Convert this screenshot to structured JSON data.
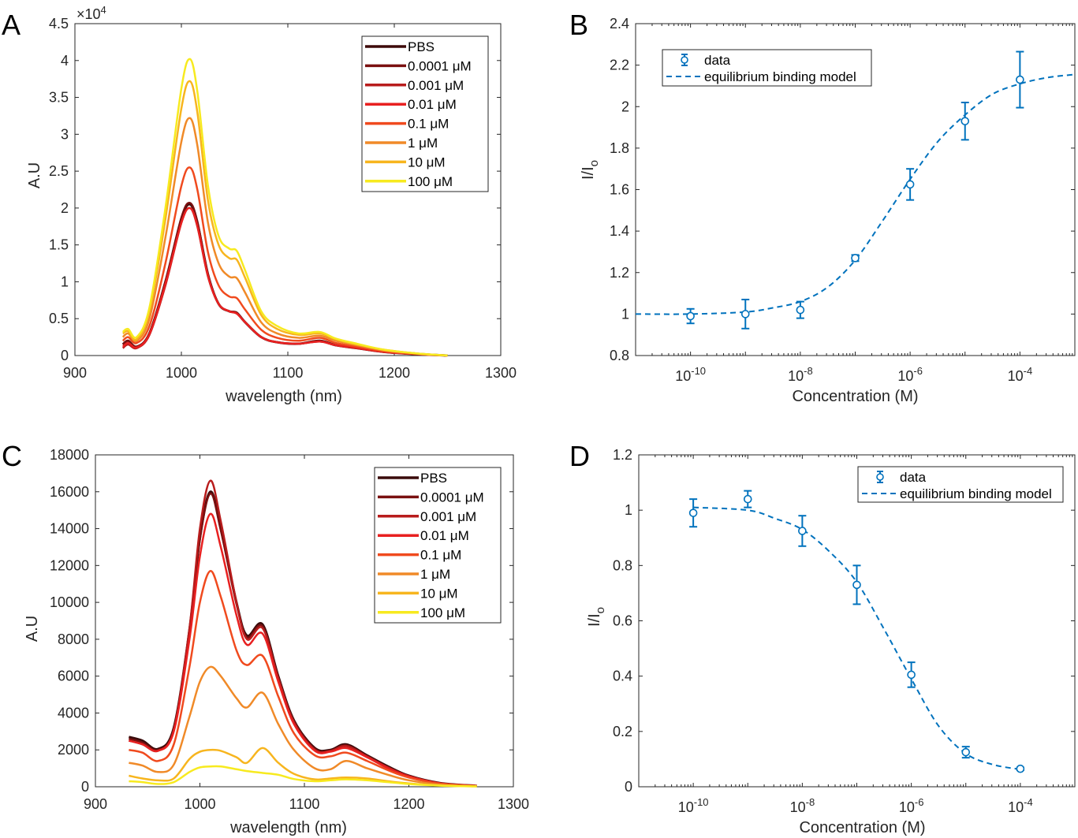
{
  "chart_data": [
    {
      "panel": "A",
      "type": "line",
      "xlabel": "wavelength (nm)",
      "ylabel": "A.U",
      "y_exponent": "×10",
      "y_exponent_power": "4",
      "xlim": [
        900,
        1300
      ],
      "ylim": [
        0,
        4.5
      ],
      "xticks": [
        900,
        1000,
        1100,
        1200,
        1300
      ],
      "yticks": [
        0,
        0.5,
        1,
        1.5,
        2,
        2.5,
        3,
        3.5,
        4,
        4.5
      ],
      "grid": false,
      "legend_position": "top-right",
      "x": [
        945,
        950,
        958,
        970,
        985,
        1000,
        1008,
        1015,
        1025,
        1035,
        1045,
        1052,
        1060,
        1075,
        1090,
        1110,
        1130,
        1145,
        1165,
        1190,
        1220,
        1250
      ],
      "series": [
        {
          "name": "PBS",
          "color": "#3d0a0a",
          "values": [
            0.15,
            0.2,
            0.12,
            0.3,
            1.0,
            1.85,
            2.05,
            1.8,
            1.1,
            0.7,
            0.6,
            0.58,
            0.45,
            0.25,
            0.18,
            0.16,
            0.2,
            0.14,
            0.1,
            0.05,
            0.02,
            0
          ]
        },
        {
          "name": "0.0001 μM",
          "color": "#7a1010",
          "values": [
            0.15,
            0.2,
            0.12,
            0.3,
            1.0,
            1.87,
            2.07,
            1.82,
            1.1,
            0.7,
            0.6,
            0.58,
            0.45,
            0.25,
            0.18,
            0.16,
            0.2,
            0.14,
            0.1,
            0.05,
            0.02,
            0
          ]
        },
        {
          "name": "0.001 μM",
          "color": "#b81c1c",
          "values": [
            0.1,
            0.15,
            0.1,
            0.28,
            0.95,
            1.8,
            2.0,
            1.75,
            1.07,
            0.7,
            0.6,
            0.57,
            0.45,
            0.25,
            0.18,
            0.16,
            0.19,
            0.14,
            0.1,
            0.05,
            0.02,
            0
          ]
        },
        {
          "name": "0.01 μM",
          "color": "#e82020",
          "values": [
            0.12,
            0.17,
            0.11,
            0.29,
            0.97,
            1.8,
            2.0,
            1.76,
            1.08,
            0.7,
            0.6,
            0.57,
            0.45,
            0.25,
            0.18,
            0.16,
            0.19,
            0.14,
            0.1,
            0.05,
            0.02,
            0
          ]
        },
        {
          "name": "0.1 μM",
          "color": "#f04a1e",
          "values": [
            0.2,
            0.25,
            0.17,
            0.4,
            1.25,
            2.3,
            2.55,
            2.25,
            1.4,
            0.95,
            0.8,
            0.78,
            0.62,
            0.35,
            0.24,
            0.2,
            0.24,
            0.17,
            0.12,
            0.06,
            0.02,
            0
          ]
        },
        {
          "name": "1 μM",
          "color": "#f08a28",
          "values": [
            0.25,
            0.3,
            0.2,
            0.5,
            1.6,
            2.9,
            3.22,
            2.85,
            1.8,
            1.25,
            1.07,
            1.05,
            0.85,
            0.45,
            0.3,
            0.24,
            0.27,
            0.2,
            0.14,
            0.07,
            0.03,
            0
          ]
        },
        {
          "name": "10 μM",
          "color": "#f7b51e",
          "values": [
            0.3,
            0.33,
            0.22,
            0.6,
            1.85,
            3.35,
            3.72,
            3.3,
            2.1,
            1.5,
            1.32,
            1.3,
            1.05,
            0.55,
            0.36,
            0.28,
            0.3,
            0.22,
            0.15,
            0.08,
            0.03,
            0
          ]
        },
        {
          "name": "100 μM",
          "color": "#f7ea1f",
          "values": [
            0.32,
            0.36,
            0.25,
            0.65,
            2.0,
            3.62,
            4.02,
            3.58,
            2.3,
            1.62,
            1.45,
            1.42,
            1.15,
            0.6,
            0.4,
            0.3,
            0.32,
            0.23,
            0.16,
            0.08,
            0.03,
            0
          ]
        }
      ]
    },
    {
      "panel": "B",
      "type": "scatter",
      "xscale": "log",
      "xlabel": "Concentration (M)",
      "ylabel_main": "I/I",
      "ylabel_sub": "o",
      "xlim": [
        1e-11,
        0.001
      ],
      "ylim": [
        0.8,
        2.4
      ],
      "xtick_labels": [
        {
          "base": "10",
          "exp": "-10"
        },
        {
          "base": "10",
          "exp": "-8"
        },
        {
          "base": "10",
          "exp": "-6"
        },
        {
          "base": "10",
          "exp": "-4"
        }
      ],
      "xticks_log10": [
        -10,
        -8,
        -6,
        -4
      ],
      "yticks": [
        0.8,
        1,
        1.2,
        1.4,
        1.6,
        1.8,
        2,
        2.2,
        2.4
      ],
      "grid": false,
      "legend_position": "top-left",
      "color": "#0072bd",
      "data": {
        "name": "data",
        "x": [
          1e-10,
          1e-09,
          1e-08,
          1e-07,
          1e-06,
          1e-05,
          0.0001
        ],
        "y": [
          0.99,
          1.0,
          1.02,
          1.27,
          1.625,
          1.93,
          2.13
        ],
        "err": [
          0.035,
          0.07,
          0.04,
          0.015,
          0.075,
          0.09,
          0.135
        ]
      },
      "model": {
        "name": "equilibrium binding model",
        "x": [
          1e-11,
          1e-10,
          1e-09,
          3.16e-09,
          1e-08,
          3.16e-08,
          1e-07,
          3.16e-07,
          1e-06,
          3.16e-06,
          1e-05,
          3.16e-05,
          0.0001,
          0.000316,
          0.001
        ],
        "y": [
          1.0,
          1.0,
          1.01,
          1.03,
          1.06,
          1.13,
          1.26,
          1.45,
          1.65,
          1.83,
          1.96,
          2.06,
          2.11,
          2.14,
          2.155
        ]
      }
    },
    {
      "panel": "C",
      "type": "line",
      "xlabel": "wavelength (nm)",
      "ylabel": "A.U",
      "xlim": [
        900,
        1300
      ],
      "ylim": [
        0,
        18000
      ],
      "xticks": [
        900,
        1000,
        1100,
        1200,
        1300
      ],
      "yticks": [
        0,
        2000,
        4000,
        6000,
        8000,
        10000,
        12000,
        14000,
        16000,
        18000
      ],
      "grid": false,
      "legend_position": "top-right",
      "x": [
        932,
        945,
        960,
        975,
        990,
        1000,
        1010,
        1020,
        1035,
        1045,
        1060,
        1075,
        1090,
        1110,
        1125,
        1140,
        1160,
        1180,
        1200,
        1230,
        1265
      ],
      "series": [
        {
          "name": "PBS",
          "color": "#3a0b0b",
          "values": [
            2700,
            2500,
            2050,
            3200,
            8500,
            13500,
            16000,
            14000,
            10000,
            8200,
            8800,
            6000,
            3600,
            2100,
            2000,
            2300,
            1700,
            1100,
            600,
            200,
            50
          ]
        },
        {
          "name": "0.0001 μM",
          "color": "#7a1010",
          "values": [
            2600,
            2400,
            2000,
            3100,
            8400,
            13400,
            15900,
            13900,
            9900,
            8100,
            8700,
            5900,
            3550,
            2050,
            1950,
            2250,
            1650,
            1050,
            580,
            190,
            50
          ]
        },
        {
          "name": "0.001 μM",
          "color": "#b81c1c",
          "values": [
            2500,
            2300,
            1950,
            3100,
            8600,
            14000,
            16600,
            14400,
            10000,
            8000,
            8600,
            5900,
            3500,
            2000,
            1950,
            2200,
            1650,
            1050,
            580,
            190,
            50
          ]
        },
        {
          "name": "0.01 μM",
          "color": "#e82020",
          "values": [
            2500,
            2300,
            1950,
            3000,
            8000,
            12500,
            14800,
            13000,
            9300,
            7700,
            8300,
            5700,
            3400,
            1950,
            1900,
            2100,
            1600,
            1000,
            560,
            180,
            50
          ]
        },
        {
          "name": "0.1 μM",
          "color": "#f04a1e",
          "values": [
            2000,
            1850,
            1400,
            2300,
            6500,
            10000,
            11700,
            10300,
            7400,
            6600,
            7100,
            4900,
            2900,
            1700,
            1650,
            1850,
            1400,
            900,
            500,
            170,
            40
          ]
        },
        {
          "name": "1 μM",
          "color": "#f08a28",
          "values": [
            1300,
            1150,
            800,
            1200,
            3800,
            5700,
            6500,
            6000,
            4800,
            4300,
            5100,
            3400,
            2000,
            1000,
            950,
            1400,
            1000,
            650,
            350,
            120,
            30
          ]
        },
        {
          "name": "10 μM",
          "color": "#f7b51e",
          "values": [
            600,
            450,
            350,
            450,
            1500,
            1900,
            2000,
            1950,
            1600,
            1300,
            2100,
            1300,
            700,
            400,
            450,
            500,
            450,
            300,
            180,
            70,
            20
          ]
        },
        {
          "name": "100 μM",
          "color": "#f7ea1f",
          "values": [
            300,
            250,
            150,
            250,
            800,
            1050,
            1100,
            1100,
            950,
            850,
            750,
            650,
            420,
            300,
            350,
            400,
            350,
            250,
            150,
            60,
            20
          ]
        }
      ]
    },
    {
      "panel": "D",
      "type": "scatter",
      "xscale": "log",
      "xlabel": "Concentration (M)",
      "ylabel_main": "I/I",
      "ylabel_sub": "o",
      "xlim": [
        1e-11,
        0.001
      ],
      "ylim": [
        0,
        1.2
      ],
      "xtick_labels": [
        {
          "base": "10",
          "exp": "-10"
        },
        {
          "base": "10",
          "exp": "-8"
        },
        {
          "base": "10",
          "exp": "-6"
        },
        {
          "base": "10",
          "exp": "-4"
        }
      ],
      "xticks_log10": [
        -10,
        -8,
        -6,
        -4
      ],
      "yticks": [
        0,
        0.2,
        0.4,
        0.6,
        0.8,
        1,
        1.2
      ],
      "grid": false,
      "legend_position": "top-right",
      "color": "#0072bd",
      "data": {
        "name": "data",
        "x": [
          1e-10,
          1e-09,
          1e-08,
          1e-07,
          1e-06,
          1e-05,
          0.0001
        ],
        "y": [
          0.99,
          1.04,
          0.925,
          0.73,
          0.405,
          0.125,
          0.065
        ],
        "err": [
          0.05,
          0.03,
          0.055,
          0.07,
          0.045,
          0.02,
          0.005
        ]
      },
      "model": {
        "name": "equilibrium binding model",
        "x": [
          1e-10,
          1e-09,
          3.16e-09,
          1e-08,
          3.16e-08,
          1e-07,
          3.16e-07,
          1e-06,
          3.16e-06,
          1e-05,
          3.16e-05,
          0.0001
        ],
        "y": [
          1.01,
          1.0,
          0.97,
          0.93,
          0.85,
          0.74,
          0.57,
          0.39,
          0.22,
          0.12,
          0.08,
          0.063
        ]
      }
    }
  ]
}
